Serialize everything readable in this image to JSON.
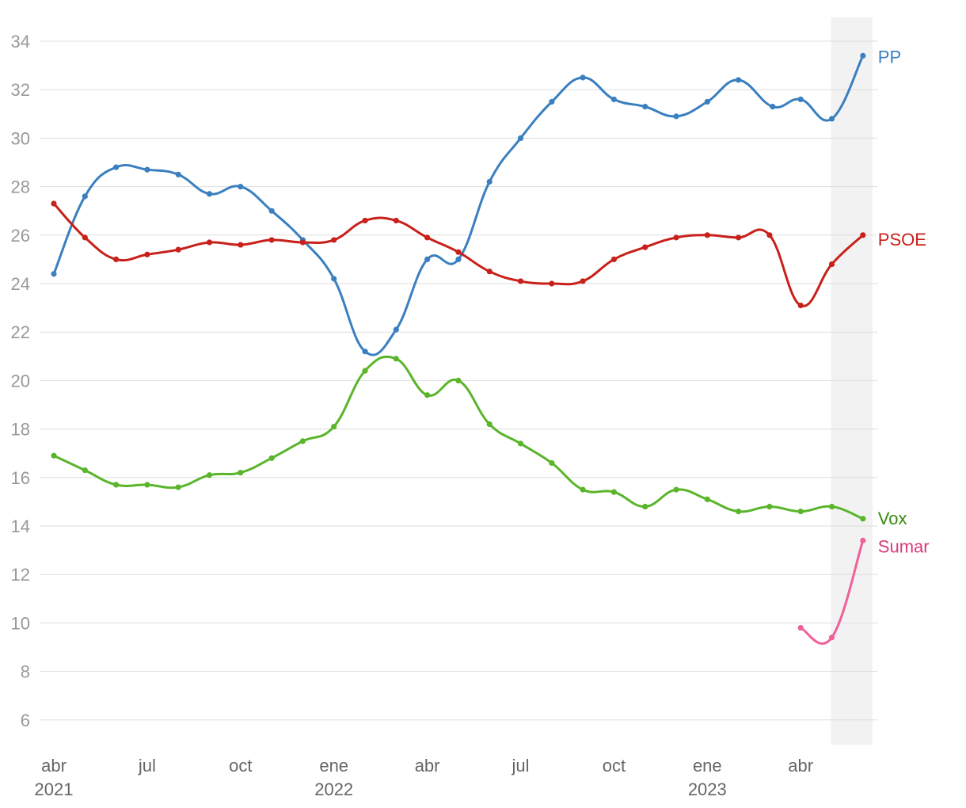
{
  "chart_data": {
    "type": "line",
    "ylim": [
      5,
      35
    ],
    "y_ticks": [
      6,
      8,
      10,
      12,
      14,
      16,
      18,
      20,
      22,
      24,
      26,
      28,
      30,
      32,
      34
    ],
    "grid": true,
    "legend": "inline-right",
    "x": [
      "2021-04",
      "2021-05",
      "2021-06",
      "2021-07",
      "2021-08",
      "2021-09",
      "2021-10",
      "2021-11",
      "2021-12",
      "2022-01",
      "2022-02",
      "2022-03",
      "2022-04",
      "2022-05",
      "2022-06",
      "2022-07",
      "2022-08",
      "2022-09",
      "2022-10",
      "2022-11",
      "2022-12",
      "2023-01",
      "2023-02",
      "2023-03",
      "2023-04",
      "2023-05",
      "2023-06"
    ],
    "x_tick_labels": [
      {
        "at": "2021-04",
        "label": "abr",
        "year": "2021"
      },
      {
        "at": "2021-07",
        "label": "jul",
        "year": ""
      },
      {
        "at": "2021-10",
        "label": "oct",
        "year": ""
      },
      {
        "at": "2022-01",
        "label": "ene",
        "year": "2022"
      },
      {
        "at": "2022-04",
        "label": "abr",
        "year": ""
      },
      {
        "at": "2022-07",
        "label": "jul",
        "year": ""
      },
      {
        "at": "2022-10",
        "label": "oct",
        "year": ""
      },
      {
        "at": "2023-01",
        "label": "ene",
        "year": "2023"
      },
      {
        "at": "2023-04",
        "label": "abr",
        "year": ""
      }
    ],
    "highlight_band": {
      "from": "2023-05",
      "to": "2023-06",
      "color": "#f2f2f2"
    },
    "series": [
      {
        "name": "PP",
        "color": "#3a7fbf",
        "label_color": "#3a7fbf",
        "points": [
          [
            "2021-04",
            24.4
          ],
          [
            "2021-05",
            27.6
          ],
          [
            "2021-06",
            28.8
          ],
          [
            "2021-07",
            28.7
          ],
          [
            "2021-08",
            28.5
          ],
          [
            "2021-09",
            27.7
          ],
          [
            "2021-10",
            28.0
          ],
          [
            "2021-11",
            27.0
          ],
          [
            "2021-12",
            25.8
          ],
          [
            "2022-01",
            24.2
          ],
          [
            "2022-02",
            21.2
          ],
          [
            "2022-03",
            22.1
          ],
          [
            "2022-04",
            25.0
          ],
          [
            "2022-05",
            25.0
          ],
          [
            "2022-06",
            28.2
          ],
          [
            "2022-07",
            30.0
          ],
          [
            "2022-08",
            31.5
          ],
          [
            "2022-09",
            32.5
          ],
          [
            "2022-10",
            31.6
          ],
          [
            "2022-11",
            31.3
          ],
          [
            "2022-12",
            30.9
          ],
          [
            "2023-01",
            31.5
          ],
          [
            "2023-02",
            32.4
          ],
          [
            "2023-03",
            31.3
          ],
          [
            "2023-04",
            31.6
          ],
          [
            "2023-05",
            30.8
          ],
          [
            "2023-06",
            33.4
          ]
        ],
        "x_offsets": [
          0,
          0,
          0,
          0,
          0,
          0,
          0,
          0,
          0,
          0,
          0,
          0,
          0,
          0,
          0,
          0,
          0,
          0,
          0,
          0,
          0,
          0,
          0,
          0.1,
          0,
          0,
          0
        ]
      },
      {
        "name": "PSOE",
        "color": "#c8201a",
        "label_color": "#c8201a",
        "points": [
          [
            "2021-04",
            27.3
          ],
          [
            "2021-05",
            25.9
          ],
          [
            "2021-06",
            25.0
          ],
          [
            "2021-07",
            25.2
          ],
          [
            "2021-08",
            25.4
          ],
          [
            "2021-09",
            25.7
          ],
          [
            "2021-10",
            25.6
          ],
          [
            "2021-11",
            25.8
          ],
          [
            "2021-12",
            25.7
          ],
          [
            "2022-01",
            25.8
          ],
          [
            "2022-02",
            26.6
          ],
          [
            "2022-03",
            26.6
          ],
          [
            "2022-04",
            25.9
          ],
          [
            "2022-05",
            25.3
          ],
          [
            "2022-06",
            24.5
          ],
          [
            "2022-07",
            24.1
          ],
          [
            "2022-08",
            24.0
          ],
          [
            "2022-09",
            24.1
          ],
          [
            "2022-10",
            25.0
          ],
          [
            "2022-11",
            25.5
          ],
          [
            "2022-12",
            25.9
          ],
          [
            "2023-01",
            26.0
          ],
          [
            "2023-02",
            25.9
          ],
          [
            "2023-03",
            26.0
          ],
          [
            "2023-04",
            23.1
          ],
          [
            "2023-05",
            24.8
          ],
          [
            "2023-06",
            26.0
          ]
        ]
      },
      {
        "name": "Vox",
        "color": "#5ab52a",
        "label_color": "#3a8a12",
        "points": [
          [
            "2021-04",
            16.9
          ],
          [
            "2021-05",
            16.3
          ],
          [
            "2021-06",
            15.7
          ],
          [
            "2021-07",
            15.7
          ],
          [
            "2021-08",
            15.6
          ],
          [
            "2021-09",
            16.1
          ],
          [
            "2021-10",
            16.2
          ],
          [
            "2021-11",
            16.8
          ],
          [
            "2021-12",
            17.5
          ],
          [
            "2022-01",
            18.1
          ],
          [
            "2022-02",
            20.4
          ],
          [
            "2022-03",
            20.9
          ],
          [
            "2022-04",
            19.4
          ],
          [
            "2022-05",
            20.0
          ],
          [
            "2022-06",
            18.2
          ],
          [
            "2022-07",
            17.4
          ],
          [
            "2022-08",
            16.6
          ],
          [
            "2022-09",
            15.5
          ],
          [
            "2022-10",
            15.4
          ],
          [
            "2022-11",
            14.8
          ],
          [
            "2022-12",
            15.5
          ],
          [
            "2023-01",
            15.1
          ],
          [
            "2023-02",
            14.6
          ],
          [
            "2023-03",
            14.8
          ],
          [
            "2023-04",
            14.6
          ],
          [
            "2023-05",
            14.8
          ],
          [
            "2023-06",
            14.3
          ]
        ]
      },
      {
        "name": "Sumar",
        "color": "#f0609a",
        "label_color": "#d83a78",
        "points": [
          [
            "2023-04",
            9.8
          ],
          [
            "2023-05",
            9.4
          ],
          [
            "2023-06",
            13.4
          ]
        ]
      }
    ]
  }
}
